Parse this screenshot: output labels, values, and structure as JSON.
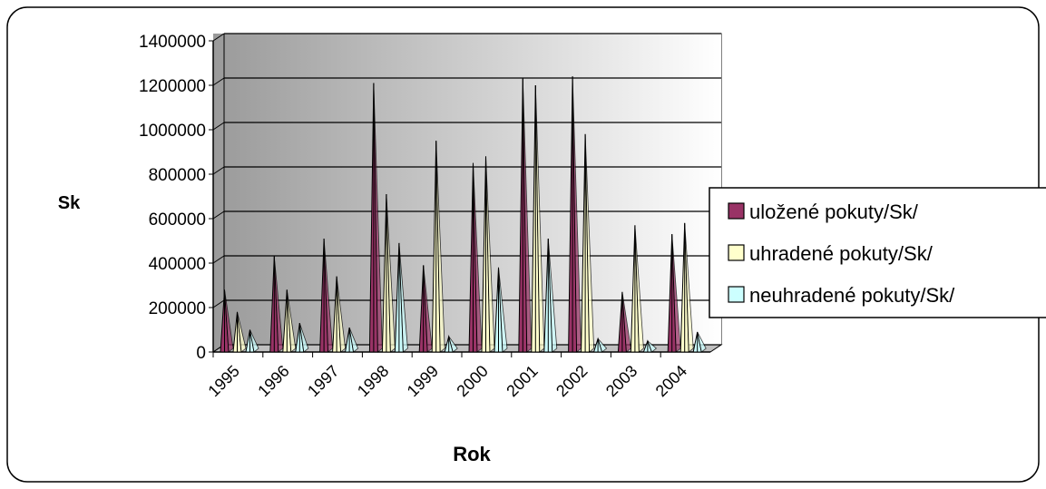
{
  "chart_data": {
    "type": "bar",
    "style": "3d-column",
    "xlabel": "Rok",
    "ylabel": "Sk",
    "ylim": [
      0,
      1400000
    ],
    "yticks": [
      "0",
      "200000",
      "400000",
      "600000",
      "800000",
      "1000000",
      "1200000",
      "1400000"
    ],
    "grid": true,
    "legend_position": "right",
    "categories": [
      "1995",
      "1996",
      "1997",
      "1998",
      "1999",
      "2000",
      "2001",
      "2002",
      "2003",
      "2004"
    ],
    "series": [
      {
        "name": "uložené pokuty/Sk/",
        "color": "#993366",
        "values": [
          280000,
          430000,
          510000,
          1210000,
          390000,
          850000,
          1230000,
          1240000,
          270000,
          530000
        ]
      },
      {
        "name": "uhradené pokuty/Sk/",
        "color": "#ffffcc",
        "values": [
          180000,
          280000,
          340000,
          710000,
          950000,
          880000,
          1200000,
          980000,
          570000,
          580000
        ]
      },
      {
        "name": "neuhradené pokuty/Sk/",
        "color": "#ccffff",
        "values": [
          100000,
          130000,
          110000,
          490000,
          70000,
          380000,
          510000,
          60000,
          50000,
          90000
        ]
      }
    ]
  }
}
